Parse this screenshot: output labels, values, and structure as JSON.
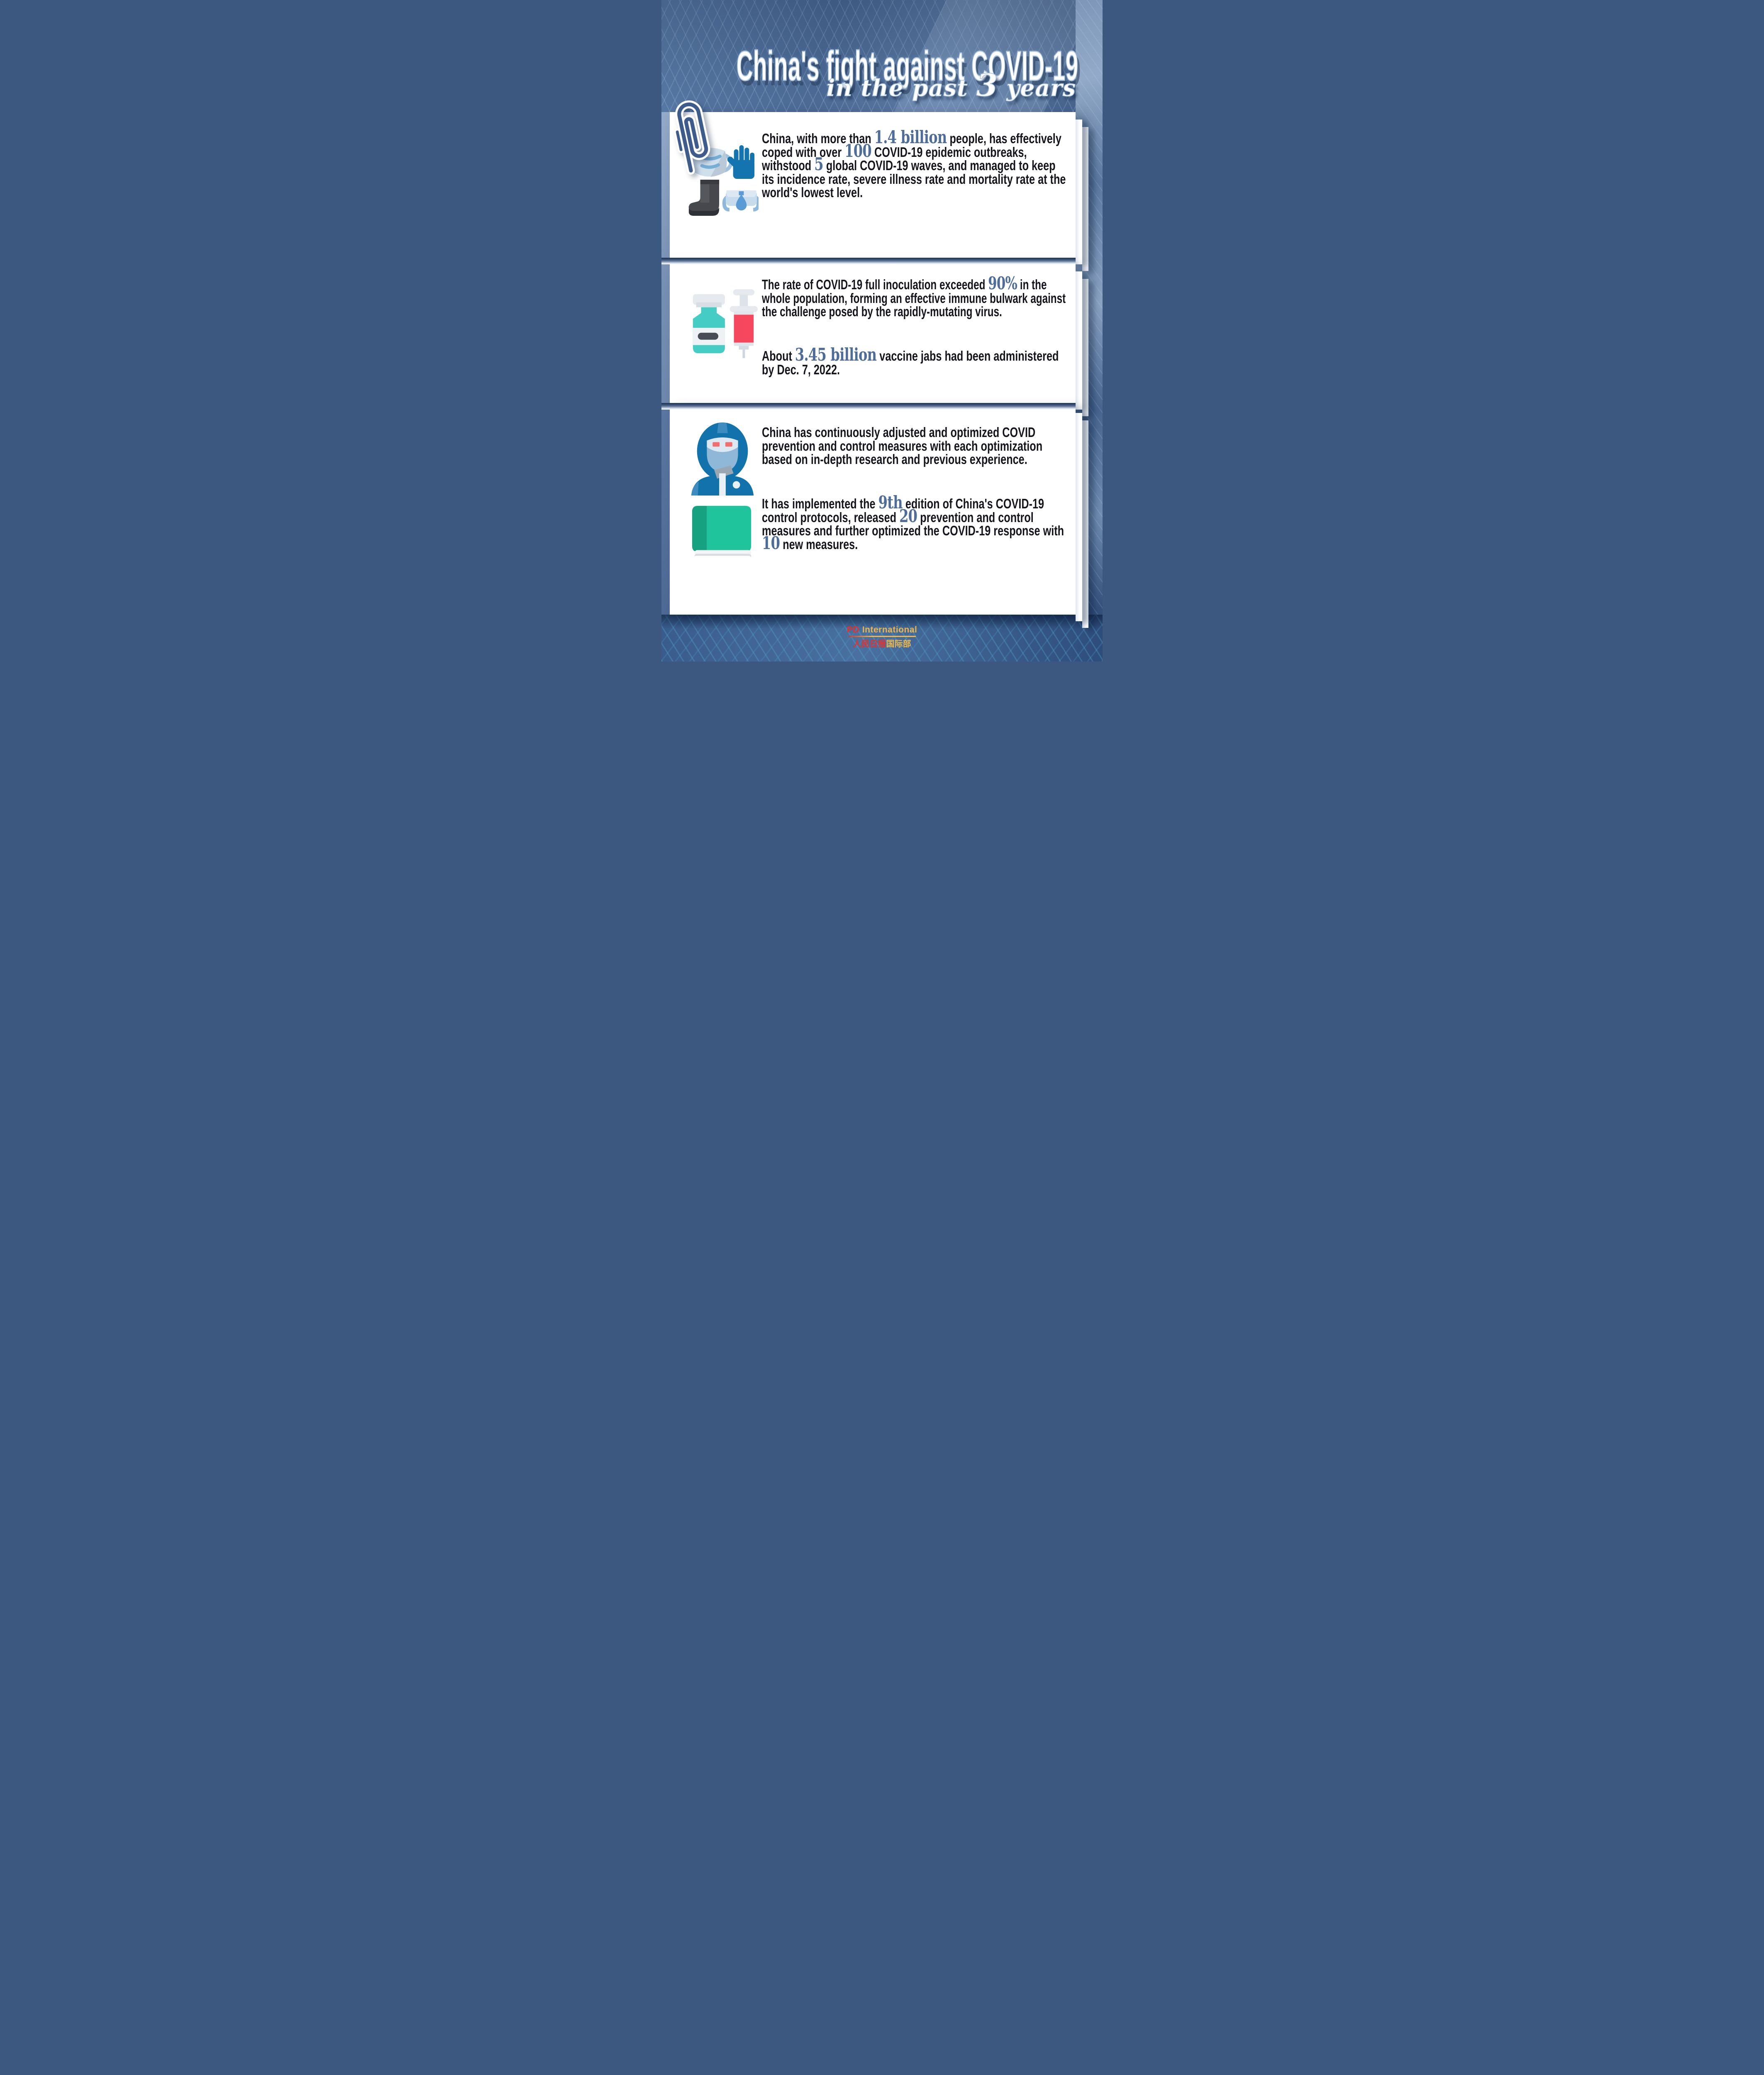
{
  "header": {
    "title": "China's fight against COVID-19",
    "subtitle": {
      "pre": "in the past ",
      "num": "3",
      "post": " years"
    }
  },
  "cards": [
    {
      "icon": "ppe-mask-glove-boot-goggles-icon",
      "paragraphs": [
        [
          {
            "t": "China, with more than "
          },
          {
            "t": "1.4 billion",
            "em": true
          },
          {
            "t": " people, has effectively coped with over "
          },
          {
            "t": "100",
            "em": true
          },
          {
            "t": " COVID-19 epidemic outbreaks, withstood "
          },
          {
            "t": "5",
            "em": true
          },
          {
            "t": " global COVID-19 waves, and managed to keep its incidence rate, severe illness rate and mortality rate at the world's lowest level."
          }
        ]
      ]
    },
    {
      "icon": "vaccine-vial-and-syringe-icon",
      "paragraphs": [
        [
          {
            "t": "The rate of COVID-19 full inoculation exceeded "
          },
          {
            "t": "90%",
            "em": true
          },
          {
            "t": " in the whole population, forming an effective immune bulwark against the challenge posed by the rapidly-mutating virus."
          }
        ],
        [
          {
            "t": "About "
          },
          {
            "t": "3.45 billion",
            "em": true
          },
          {
            "t": " vaccine jabs had been administered by Dec. 7, 2022."
          }
        ]
      ]
    },
    {
      "icons": [
        "medical-worker-protective-suit-icon",
        "protocol-book-icon"
      ],
      "paragraphs": [
        [
          {
            "t": "China has continuously adjusted and optimized COVID prevention and control measures with each optimization based on in-depth research and previous experience."
          }
        ],
        [
          {
            "t": "It has implemented the "
          },
          {
            "t": "9th",
            "em": true
          },
          {
            "t": " edition of China's COVID-19 control protocols, released "
          },
          {
            "t": "20",
            "em": true
          },
          {
            "t": " prevention and control measures and further optimized the COVID-19 response with "
          },
          {
            "t": "10",
            "em": true
          },
          {
            "t": " new measures."
          }
        ]
      ]
    }
  ],
  "decorations": {
    "paperclip": "paperclip-icon"
  },
  "footer": {
    "brand_en_red": "PD",
    "brand_en_gold": "International",
    "brand_cn_red": "人民日报",
    "brand_cn_gold": "国际部"
  },
  "colors": {
    "background_blue": "#4c6b96",
    "card_white": "#ffffff",
    "number_accent": "#4e6d99",
    "title_white": "#ffffff",
    "title_outline": "#adc6df",
    "brand_red": "#e8312a",
    "brand_gold": "#efb64a",
    "mask_blue": "#cfdfec",
    "glove_blue": "#1474b0",
    "boot_gray": "#47484d",
    "vial_teal": "#45ccc4",
    "syringe_red": "#f5485f",
    "suit_blue": "#1272ab",
    "book_green": "#1fc39c"
  }
}
